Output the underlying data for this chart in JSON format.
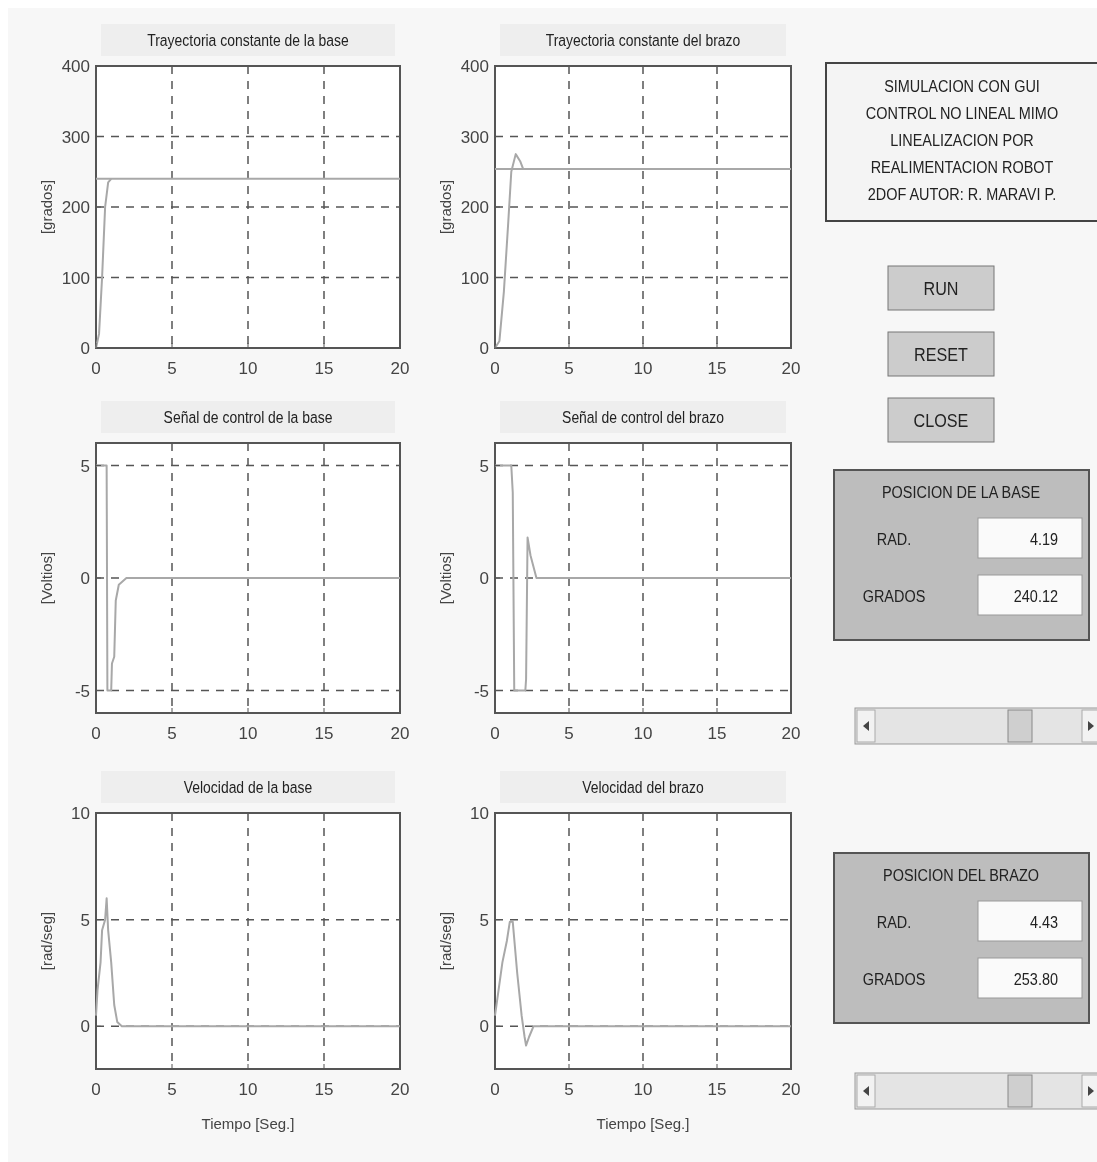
{
  "chart_data": [
    {
      "type": "line",
      "title": "Trayectoria constante de la base",
      "ylabel": "[grados]",
      "xlim": [
        0,
        20
      ],
      "xticks": [
        0,
        5,
        10,
        15,
        20
      ],
      "ylim": [
        0,
        400
      ],
      "yticks": [
        0,
        100,
        200,
        300,
        400
      ],
      "grid": true,
      "series": [
        {
          "color": "#a8a8a8",
          "x": [
            0,
            20
          ],
          "values": [
            240,
            240
          ]
        },
        {
          "color": "#a8a8a8",
          "x": [
            0,
            0.2,
            0.4,
            0.6,
            0.8,
            1
          ],
          "values": [
            0,
            20,
            100,
            200,
            235,
            240
          ]
        }
      ]
    },
    {
      "type": "line",
      "title": "Trayectoria constante del brazo",
      "ylabel": "[grados]",
      "xlim": [
        0,
        20
      ],
      "xticks": [
        0,
        5,
        10,
        15,
        20
      ],
      "ylim": [
        0,
        400
      ],
      "yticks": [
        0,
        100,
        200,
        300,
        400
      ],
      "grid": true,
      "series": [
        {
          "color": "#a8a8a8",
          "x": [
            0,
            20
          ],
          "values": [
            254,
            254
          ]
        },
        {
          "color": "#a8a8a8",
          "x": [
            0,
            0.3,
            0.6,
            0.9,
            1.1,
            1.4,
            1.7,
            1.9
          ],
          "values": [
            0,
            10,
            80,
            180,
            250,
            275,
            265,
            254
          ]
        }
      ]
    },
    {
      "type": "line",
      "title": "Señal de control de la base",
      "ylabel": "[Voltios]",
      "xlim": [
        0,
        20
      ],
      "xticks": [
        0,
        5,
        10,
        15,
        20
      ],
      "ylim": [
        -6,
        6
      ],
      "yticks": [
        -5,
        0,
        5
      ],
      "grid": true,
      "series": [
        {
          "color": "#a8a8a8",
          "x": [
            0,
            0.7,
            0.75,
            1.0,
            1.05,
            1.2,
            1.3,
            1.5,
            2,
            20
          ],
          "values": [
            5,
            5,
            -5,
            -5,
            -3.8,
            -3.5,
            -1,
            -0.3,
            0,
            0
          ]
        }
      ]
    },
    {
      "type": "line",
      "title": "Señal de control del brazo",
      "ylabel": "[Voltios]",
      "xlim": [
        0,
        20
      ],
      "xticks": [
        0,
        5,
        10,
        15,
        20
      ],
      "ylim": [
        -6,
        6
      ],
      "yticks": [
        -5,
        0,
        5
      ],
      "grid": true,
      "series": [
        {
          "color": "#a8a8a8",
          "x": [
            0,
            1.1,
            1.2,
            1.3,
            2.05,
            2.1,
            2.2,
            2.4,
            2.8,
            20
          ],
          "values": [
            5,
            5,
            3.8,
            -5,
            -5,
            -4.5,
            1.8,
            1,
            0,
            0
          ]
        }
      ]
    },
    {
      "type": "line",
      "title": "Velocidad de la base",
      "xlabel": "Tiempo [Seg.]",
      "ylabel": "[rad/seg]",
      "xlim": [
        0,
        20
      ],
      "xticks": [
        0,
        5,
        10,
        15,
        20
      ],
      "ylim": [
        -2,
        10
      ],
      "yticks": [
        0,
        5,
        10
      ],
      "grid": true,
      "series": [
        {
          "color": "#a8a8a8",
          "x": [
            0,
            0.1,
            0.3,
            0.4,
            0.6,
            0.7,
            0.8,
            1,
            1.2,
            1.4,
            1.7,
            20
          ],
          "values": [
            0.5,
            1.7,
            3,
            4.5,
            5,
            6,
            4.5,
            3,
            1,
            0.2,
            0,
            0
          ]
        }
      ]
    },
    {
      "type": "line",
      "title": "Velocidad del brazo",
      "xlabel": "Tiempo [Seg.]",
      "ylabel": "[rad/seg]",
      "xlim": [
        0,
        20
      ],
      "xticks": [
        0,
        5,
        10,
        15,
        20
      ],
      "ylim": [
        -2,
        10
      ],
      "yticks": [
        0,
        5,
        10
      ],
      "grid": true,
      "series": [
        {
          "color": "#a8a8a8",
          "x": [
            0,
            0.2,
            0.5,
            0.8,
            1,
            1.2,
            1.5,
            1.8,
            2,
            2.1,
            2.3,
            2.6,
            20
          ],
          "values": [
            0.5,
            1.5,
            3,
            4,
            4.9,
            4.9,
            2.5,
            0.5,
            -0.5,
            -0.9,
            -0.5,
            0,
            0
          ]
        }
      ]
    },
    {
      "type": "other",
      "title": "SIMULACION CON GUI CONTROL NO LINEAL MIMO LINEALIZACION POR REALIMENTACION ROBOT 2DOF AUTOR: R. MARAVI P.",
      "annotations": [
        "RUN",
        "RESET",
        "CLOSE",
        "POSICION DE LA BASE",
        "RAD.",
        "4.19",
        "GRADOS",
        "240.12",
        "POSICION DEL BRAZO",
        "RAD.",
        "4.43",
        "GRADOS",
        "253.80"
      ]
    }
  ]
}
